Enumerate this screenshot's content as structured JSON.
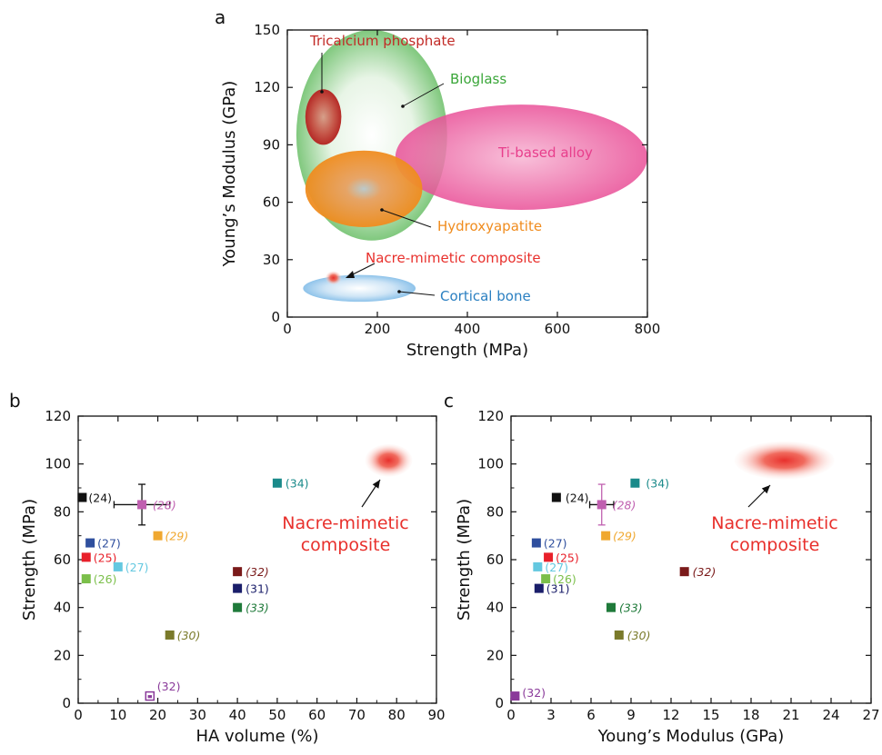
{
  "chart_data": [
    {
      "panel": "a",
      "type": "scatter",
      "xlabel": "Strength (MPa)",
      "ylabel": "Young’s Modulus (GPa)",
      "xlim": [
        0,
        800
      ],
      "ylim": [
        0,
        150
      ],
      "xticks": [
        0,
        200,
        400,
        600,
        800
      ],
      "yticks": [
        0,
        30,
        60,
        90,
        120,
        150
      ],
      "regions": [
        {
          "name": "Bioglass",
          "x_range": [
            20,
            355
          ],
          "y_range": [
            40,
            150
          ],
          "color": "#3aa639"
        },
        {
          "name": "Ti-based alloy",
          "x_range": [
            240,
            800
          ],
          "y_range": [
            56,
            111
          ],
          "color": "#e83e8c"
        },
        {
          "name": "Tricalcium phosphate",
          "x_range": [
            40,
            120
          ],
          "y_range": [
            90,
            119
          ],
          "color": "#c22a26"
        },
        {
          "name": "Hydroxyapatite",
          "x_range": [
            40,
            300
          ],
          "y_range": [
            47,
            87
          ],
          "color": "#f08c1e"
        },
        {
          "name": "Cortical bone",
          "x_range": [
            35,
            285
          ],
          "y_range": [
            8,
            22
          ],
          "color": "#2a7fc1"
        },
        {
          "name": "Nacre-mimetic composite",
          "x_range": [
            85,
            120
          ],
          "y_range": [
            17,
            24
          ],
          "color": "#e8302c"
        }
      ]
    },
    {
      "panel": "b",
      "type": "scatter",
      "xlabel": "HA volume (%)",
      "ylabel": "Strength (MPa)",
      "xlim": [
        0,
        90
      ],
      "ylim": [
        0,
        120
      ],
      "xticks": [
        0,
        10,
        20,
        30,
        40,
        50,
        60,
        70,
        80,
        90
      ],
      "yticks": [
        0,
        20,
        40,
        60,
        80,
        100,
        120
      ],
      "points": [
        {
          "label": "(24)",
          "x": 1,
          "y": 86,
          "color": "#111111"
        },
        {
          "label": "(27)",
          "x": 3,
          "y": 67,
          "color": "#2f4f9e"
        },
        {
          "label": "(25)",
          "x": 2,
          "y": 61,
          "color": "#e8202a"
        },
        {
          "label": "(26)",
          "x": 2,
          "y": 52,
          "color": "#7bbf4a"
        },
        {
          "label": "(27)",
          "x": 10,
          "y": 57,
          "color": "#64c8e0"
        },
        {
          "label": "(28)",
          "x": 16,
          "y": 83,
          "color": "#c060b0",
          "xerr": 7,
          "yerr": 8.5,
          "italic": true
        },
        {
          "label": "(29)",
          "x": 20,
          "y": 70,
          "color": "#f0a830",
          "italic": true
        },
        {
          "label": "(30)",
          "x": 23,
          "y": 28.5,
          "color": "#7a7a2a",
          "italic": true
        },
        {
          "label": "(32)",
          "x": 18,
          "y": 3,
          "color": "#8a3a9a",
          "hollow": true
        },
        {
          "label": "(32)",
          "x": 40,
          "y": 55,
          "color": "#7a1a1a",
          "italic": true
        },
        {
          "label": "(31)",
          "x": 40,
          "y": 48,
          "color": "#1a1e6a"
        },
        {
          "label": "(33)",
          "x": 40,
          "y": 40,
          "color": "#1f7a3a",
          "italic": true
        },
        {
          "label": "(34)",
          "x": 50,
          "y": 92,
          "color": "#1a8a8a"
        }
      ],
      "highlight": {
        "x": 78,
        "y": 101.5,
        "label": [
          "Nacre-mimetic",
          "composite"
        ],
        "color": "#e8302c"
      }
    },
    {
      "panel": "c",
      "type": "scatter",
      "xlabel": "Young’s Modulus (GPa)",
      "ylabel": "Strength (MPa)",
      "xlim": [
        0,
        27
      ],
      "ylim": [
        0,
        120
      ],
      "xticks": [
        0,
        3,
        6,
        9,
        12,
        15,
        18,
        21,
        24,
        27
      ],
      "yticks": [
        0,
        20,
        40,
        60,
        80,
        100,
        120
      ],
      "points": [
        {
          "label": "(24)",
          "x": 3.4,
          "y": 86,
          "color": "#111111"
        },
        {
          "label": "(27)",
          "x": 1.9,
          "y": 67,
          "color": "#2f4f9e"
        },
        {
          "label": "(25)",
          "x": 2.8,
          "y": 61,
          "color": "#e8202a"
        },
        {
          "label": "(27)",
          "x": 2.0,
          "y": 57,
          "color": "#64c8e0"
        },
        {
          "label": "(26)",
          "x": 2.6,
          "y": 52,
          "color": "#7bbf4a"
        },
        {
          "label": "(31)",
          "x": 2.1,
          "y": 48,
          "color": "#1a1e6a"
        },
        {
          "label": "(28)",
          "x": 6.8,
          "y": 83,
          "color": "#c060b0",
          "xerr": 0.9,
          "yerr": 8.5,
          "italic": true
        },
        {
          "label": "(29)",
          "x": 7.1,
          "y": 70,
          "color": "#f0a830",
          "italic": true
        },
        {
          "label": "(34)",
          "x": 9.3,
          "y": 92,
          "color": "#1a8a8a"
        },
        {
          "label": "(32)",
          "x": 13.0,
          "y": 55,
          "color": "#7a1a1a",
          "italic": true
        },
        {
          "label": "(33)",
          "x": 7.5,
          "y": 40,
          "color": "#1f7a3a",
          "italic": true
        },
        {
          "label": "(30)",
          "x": 8.1,
          "y": 28.5,
          "color": "#7a7a2a",
          "italic": true
        },
        {
          "label": "(32)",
          "x": 0.3,
          "y": 3,
          "color": "#8a3a9a"
        }
      ],
      "highlight": {
        "x": 20.5,
        "y": 101.5,
        "label": [
          "Nacre-mimetic",
          "composite"
        ],
        "color": "#e8302c"
      }
    }
  ]
}
